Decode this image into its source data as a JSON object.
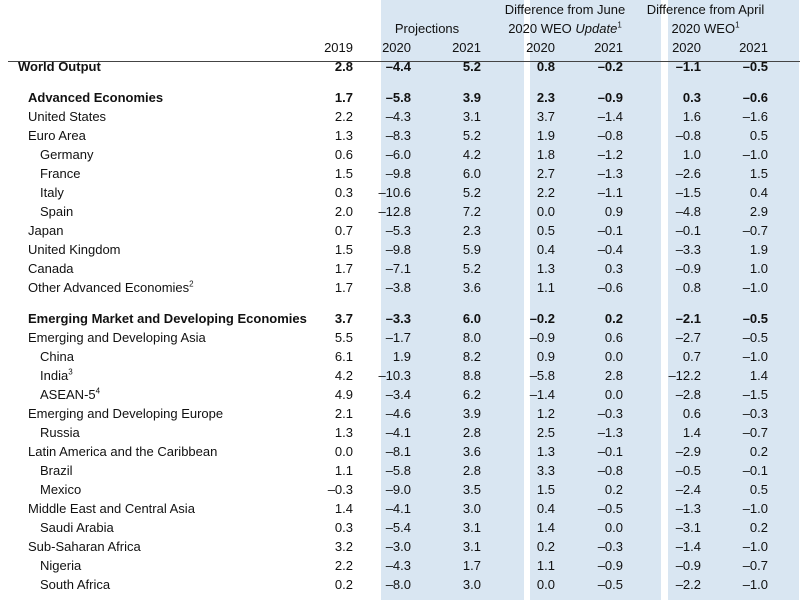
{
  "header": {
    "group1": "Projections",
    "group2_line1": "Difference from June",
    "group2_line2a": "2020 WEO ",
    "group2_line2b": "Update",
    "group2_sup": "1",
    "group3_line1": "Difference from April",
    "group3_line2": "2020 WEO",
    "group3_sup": "1",
    "years": [
      "2019",
      "2020",
      "2021",
      "2020",
      "2021",
      "2020",
      "2021"
    ]
  },
  "rows": [
    {
      "label": "World Output",
      "sup": "",
      "indent": 0,
      "bold": true,
      "gap": false,
      "v": [
        "2.8",
        "–4.4",
        "5.2",
        "0.8",
        "–0.2",
        "–1.1",
        "–0.5"
      ]
    },
    {
      "label": "Advanced Economies",
      "sup": "",
      "indent": 1,
      "bold": true,
      "gap": true,
      "v": [
        "1.7",
        "–5.8",
        "3.9",
        "2.3",
        "–0.9",
        "0.3",
        "–0.6"
      ]
    },
    {
      "label": "United States",
      "sup": "",
      "indent": 1,
      "bold": false,
      "gap": false,
      "v": [
        "2.2",
        "–4.3",
        "3.1",
        "3.7",
        "–1.4",
        "1.6",
        "–1.6"
      ]
    },
    {
      "label": "Euro Area",
      "sup": "",
      "indent": 1,
      "bold": false,
      "gap": false,
      "v": [
        "1.3",
        "–8.3",
        "5.2",
        "1.9",
        "–0.8",
        "–0.8",
        "0.5"
      ]
    },
    {
      "label": "Germany",
      "sup": "",
      "indent": 2,
      "bold": false,
      "gap": false,
      "v": [
        "0.6",
        "–6.0",
        "4.2",
        "1.8",
        "–1.2",
        "1.0",
        "–1.0"
      ]
    },
    {
      "label": "France",
      "sup": "",
      "indent": 2,
      "bold": false,
      "gap": false,
      "v": [
        "1.5",
        "–9.8",
        "6.0",
        "2.7",
        "–1.3",
        "–2.6",
        "1.5"
      ]
    },
    {
      "label": "Italy",
      "sup": "",
      "indent": 2,
      "bold": false,
      "gap": false,
      "v": [
        "0.3",
        "–10.6",
        "5.2",
        "2.2",
        "–1.1",
        "–1.5",
        "0.4"
      ]
    },
    {
      "label": "Spain",
      "sup": "",
      "indent": 2,
      "bold": false,
      "gap": false,
      "v": [
        "2.0",
        "–12.8",
        "7.2",
        "0.0",
        "0.9",
        "–4.8",
        "2.9"
      ]
    },
    {
      "label": "Japan",
      "sup": "",
      "indent": 1,
      "bold": false,
      "gap": false,
      "v": [
        "0.7",
        "–5.3",
        "2.3",
        "0.5",
        "–0.1",
        "–0.1",
        "–0.7"
      ]
    },
    {
      "label": "United Kingdom",
      "sup": "",
      "indent": 1,
      "bold": false,
      "gap": false,
      "v": [
        "1.5",
        "–9.8",
        "5.9",
        "0.4",
        "–0.4",
        "–3.3",
        "1.9"
      ]
    },
    {
      "label": "Canada",
      "sup": "",
      "indent": 1,
      "bold": false,
      "gap": false,
      "v": [
        "1.7",
        "–7.1",
        "5.2",
        "1.3",
        "0.3",
        "–0.9",
        "1.0"
      ]
    },
    {
      "label": "Other Advanced Economies",
      "sup": "2",
      "indent": 1,
      "bold": false,
      "gap": false,
      "v": [
        "1.7",
        "–3.8",
        "3.6",
        "1.1",
        "–0.6",
        "0.8",
        "–1.0"
      ]
    },
    {
      "label": "Emerging Market and Developing Economies",
      "sup": "",
      "indent": 1,
      "bold": true,
      "gap": true,
      "v": [
        "3.7",
        "–3.3",
        "6.0",
        "–0.2",
        "0.2",
        "–2.1",
        "–0.5"
      ]
    },
    {
      "label": "Emerging and Developing Asia",
      "sup": "",
      "indent": 1,
      "bold": false,
      "gap": false,
      "v": [
        "5.5",
        "–1.7",
        "8.0",
        "–0.9",
        "0.6",
        "–2.7",
        "–0.5"
      ]
    },
    {
      "label": "China",
      "sup": "",
      "indent": 2,
      "bold": false,
      "gap": false,
      "v": [
        "6.1",
        "1.9",
        "8.2",
        "0.9",
        "0.0",
        "0.7",
        "–1.0"
      ]
    },
    {
      "label": "India",
      "sup": "3",
      "indent": 2,
      "bold": false,
      "gap": false,
      "v": [
        "4.2",
        "–10.3",
        "8.8",
        "–5.8",
        "2.8",
        "–12.2",
        "1.4"
      ]
    },
    {
      "label": "ASEAN-5",
      "sup": "4",
      "indent": 2,
      "bold": false,
      "gap": false,
      "v": [
        "4.9",
        "–3.4",
        "6.2",
        "–1.4",
        "0.0",
        "–2.8",
        "–1.5"
      ]
    },
    {
      "label": "Emerging and Developing Europe",
      "sup": "",
      "indent": 1,
      "bold": false,
      "gap": false,
      "v": [
        "2.1",
        "–4.6",
        "3.9",
        "1.2",
        "–0.3",
        "0.6",
        "–0.3"
      ]
    },
    {
      "label": "Russia",
      "sup": "",
      "indent": 2,
      "bold": false,
      "gap": false,
      "v": [
        "1.3",
        "–4.1",
        "2.8",
        "2.5",
        "–1.3",
        "1.4",
        "–0.7"
      ]
    },
    {
      "label": "Latin America and the Caribbean",
      "sup": "",
      "indent": 1,
      "bold": false,
      "gap": false,
      "v": [
        "0.0",
        "–8.1",
        "3.6",
        "1.3",
        "–0.1",
        "–2.9",
        "0.2"
      ]
    },
    {
      "label": "Brazil",
      "sup": "",
      "indent": 2,
      "bold": false,
      "gap": false,
      "v": [
        "1.1",
        "–5.8",
        "2.8",
        "3.3",
        "–0.8",
        "–0.5",
        "–0.1"
      ]
    },
    {
      "label": "Mexico",
      "sup": "",
      "indent": 2,
      "bold": false,
      "gap": false,
      "v": [
        "–0.3",
        "–9.0",
        "3.5",
        "1.5",
        "0.2",
        "–2.4",
        "0.5"
      ]
    },
    {
      "label": "Middle East and Central Asia",
      "sup": "",
      "indent": 1,
      "bold": false,
      "gap": false,
      "v": [
        "1.4",
        "–4.1",
        "3.0",
        "0.4",
        "–0.5",
        "–1.3",
        "–1.0"
      ]
    },
    {
      "label": "Saudi Arabia",
      "sup": "",
      "indent": 2,
      "bold": false,
      "gap": false,
      "v": [
        "0.3",
        "–5.4",
        "3.1",
        "1.4",
        "0.0",
        "–3.1",
        "0.2"
      ]
    },
    {
      "label": "Sub-Saharan Africa",
      "sup": "",
      "indent": 1,
      "bold": false,
      "gap": false,
      "v": [
        "3.2",
        "–3.0",
        "3.1",
        "0.2",
        "–0.3",
        "–1.4",
        "–1.0"
      ]
    },
    {
      "label": "Nigeria",
      "sup": "",
      "indent": 2,
      "bold": false,
      "gap": false,
      "v": [
        "2.2",
        "–4.3",
        "1.7",
        "1.1",
        "–0.9",
        "–0.9",
        "–0.7"
      ]
    },
    {
      "label": "South Africa",
      "sup": "",
      "indent": 2,
      "bold": false,
      "gap": false,
      "v": [
        "0.2",
        "–8.0",
        "3.0",
        "0.0",
        "–0.5",
        "–2.2",
        "–1.0"
      ]
    }
  ]
}
